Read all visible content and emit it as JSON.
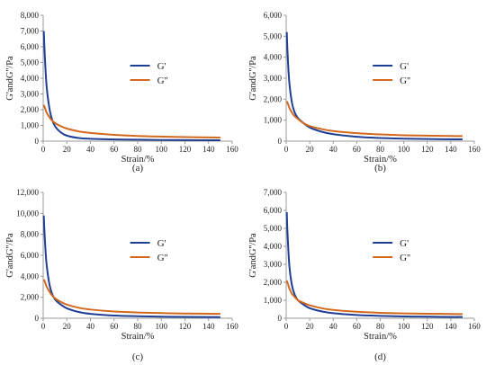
{
  "colors": {
    "g_prime": "#1f3f95",
    "g_double_prime": "#d2691e",
    "axis": "#9a9a9a"
  },
  "chart_data": [
    {
      "type": "line",
      "panel_label": "(a)",
      "xlabel": "Strain/%",
      "ylabel": "G'andG''/Pa",
      "xlim": [
        0,
        160
      ],
      "ylim": [
        0,
        8000
      ],
      "x_ticks": [
        0,
        20,
        40,
        60,
        80,
        100,
        120,
        140,
        160
      ],
      "y_ticks": [
        0,
        1000,
        2000,
        3000,
        4000,
        5000,
        6000,
        7000,
        8000
      ],
      "legend_position": "center-right",
      "grid": false,
      "series": [
        {
          "name": "G'",
          "color": "#1f3f95",
          "x": [
            0.5,
            1,
            2,
            3,
            5,
            7,
            10,
            15,
            20,
            30,
            40,
            60,
            80,
            100,
            120,
            150
          ],
          "y": [
            7000,
            6000,
            4500,
            3400,
            2200,
            1500,
            950,
            550,
            350,
            200,
            150,
            110,
            90,
            75,
            65,
            55
          ]
        },
        {
          "name": "G''",
          "color": "#d2691e",
          "x": [
            0.5,
            1,
            2,
            3,
            5,
            7,
            10,
            15,
            20,
            30,
            40,
            60,
            80,
            100,
            120,
            150
          ],
          "y": [
            2300,
            2200,
            2000,
            1800,
            1550,
            1350,
            1150,
            950,
            800,
            620,
            520,
            400,
            330,
            290,
            260,
            230
          ]
        }
      ]
    },
    {
      "type": "line",
      "panel_label": "(b)",
      "xlabel": "Strain/%",
      "ylabel": "G'andG''/Pa",
      "xlim": [
        0,
        160
      ],
      "ylim": [
        0,
        6000
      ],
      "x_ticks": [
        0,
        20,
        40,
        60,
        80,
        100,
        120,
        140,
        160
      ],
      "y_ticks": [
        0,
        1000,
        2000,
        3000,
        4000,
        5000,
        6000
      ],
      "legend_position": "center-right",
      "grid": false,
      "series": [
        {
          "name": "G'",
          "color": "#1f3f95",
          "x": [
            0.5,
            1,
            2,
            3,
            5,
            7,
            10,
            15,
            20,
            30,
            40,
            60,
            80,
            100,
            120,
            150
          ],
          "y": [
            5200,
            4400,
            3300,
            2600,
            1800,
            1400,
            1100,
            850,
            650,
            450,
            330,
            210,
            150,
            120,
            100,
            85
          ]
        },
        {
          "name": "G''",
          "color": "#d2691e",
          "x": [
            0.5,
            1,
            2,
            3,
            5,
            7,
            10,
            15,
            20,
            30,
            40,
            60,
            80,
            100,
            120,
            150
          ],
          "y": [
            1900,
            1850,
            1700,
            1550,
            1350,
            1200,
            1050,
            850,
            720,
            580,
            480,
            380,
            320,
            280,
            260,
            240
          ]
        }
      ]
    },
    {
      "type": "line",
      "panel_label": "(c)",
      "xlabel": "Strain/%",
      "ylabel": "G'andG''/Pa",
      "xlim": [
        0,
        160
      ],
      "ylim": [
        0,
        12000
      ],
      "x_ticks": [
        0,
        20,
        40,
        60,
        80,
        100,
        120,
        140,
        160
      ],
      "y_ticks": [
        0,
        2000,
        4000,
        6000,
        8000,
        10000,
        12000
      ],
      "legend_position": "center-right",
      "grid": false,
      "series": [
        {
          "name": "G'",
          "color": "#1f3f95",
          "x": [
            0.5,
            1,
            2,
            3,
            5,
            7,
            10,
            15,
            20,
            30,
            40,
            60,
            80,
            100,
            120,
            150
          ],
          "y": [
            9800,
            8400,
            6400,
            5000,
            3400,
            2500,
            1800,
            1300,
            950,
            600,
            420,
            260,
            190,
            150,
            130,
            110
          ]
        },
        {
          "name": "G''",
          "color": "#d2691e",
          "x": [
            0.5,
            1,
            2,
            3,
            5,
            7,
            10,
            15,
            20,
            30,
            40,
            60,
            80,
            100,
            120,
            150
          ],
          "y": [
            3700,
            3600,
            3300,
            3000,
            2600,
            2250,
            1900,
            1550,
            1300,
            1000,
            830,
            640,
            550,
            490,
            450,
            420
          ]
        }
      ]
    },
    {
      "type": "line",
      "panel_label": "(d)",
      "xlabel": "Strain/%",
      "ylabel": "G'andG''/Pa",
      "xlim": [
        0,
        160
      ],
      "ylim": [
        0,
        7000
      ],
      "x_ticks": [
        0,
        20,
        40,
        60,
        80,
        100,
        120,
        140,
        160
      ],
      "y_ticks": [
        0,
        1000,
        2000,
        3000,
        4000,
        5000,
        6000,
        7000
      ],
      "legend_position": "center-right",
      "grid": false,
      "series": [
        {
          "name": "G'",
          "color": "#1f3f95",
          "x": [
            0.5,
            1,
            2,
            3,
            5,
            7,
            10,
            15,
            20,
            30,
            40,
            60,
            80,
            100,
            120,
            150
          ],
          "y": [
            5900,
            4900,
            3600,
            2700,
            1800,
            1350,
            1000,
            750,
            560,
            380,
            280,
            180,
            130,
            100,
            85,
            70
          ]
        },
        {
          "name": "G''",
          "color": "#d2691e",
          "x": [
            0.5,
            1,
            2,
            3,
            5,
            7,
            10,
            15,
            20,
            30,
            40,
            60,
            80,
            100,
            120,
            150
          ],
          "y": [
            2100,
            2000,
            1800,
            1600,
            1350,
            1200,
            1000,
            850,
            720,
            560,
            460,
            360,
            300,
            270,
            250,
            230
          ]
        }
      ]
    }
  ]
}
